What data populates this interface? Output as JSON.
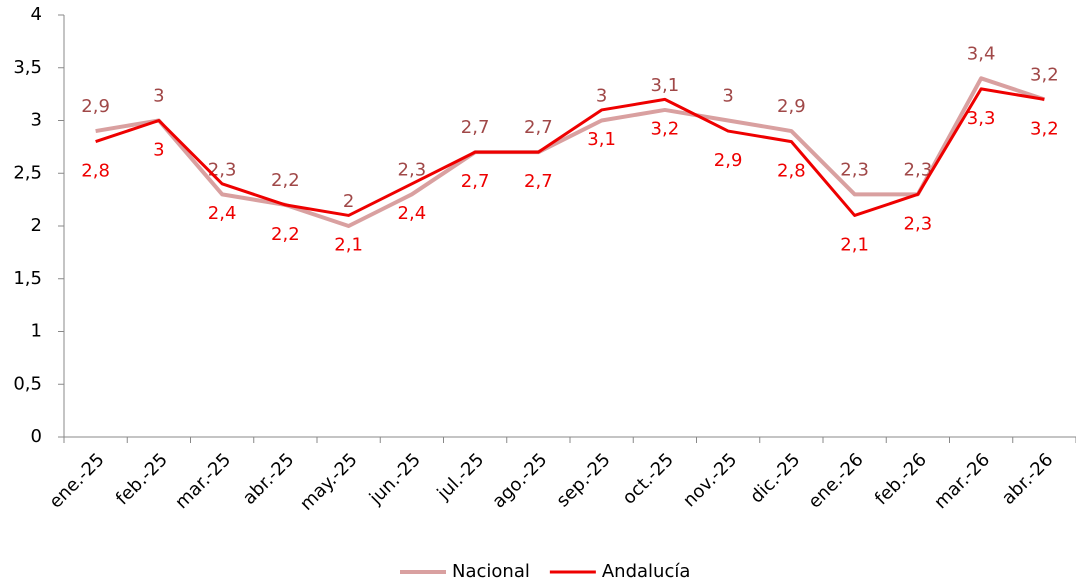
{
  "chart_data": {
    "type": "line",
    "categories": [
      "ene.-25",
      "feb.-25",
      "mar.-25",
      "abr.-25",
      "may.-25",
      "jun.-25",
      "jul.-25",
      "ago.-25",
      "sep.-25",
      "oct.-25",
      "nov.-25",
      "dic.-25",
      "ene.-26",
      "feb.-26",
      "mar.-26",
      "abr.-26"
    ],
    "series": [
      {
        "name": "Nacional",
        "color": "#d9a0a0",
        "label_color": "#a04848",
        "values": [
          2.9,
          3,
          2.3,
          2.2,
          2,
          2.3,
          2.7,
          2.7,
          3,
          3.1,
          3,
          2.9,
          2.3,
          2.3,
          3.4,
          3.2
        ],
        "value_labels": [
          "2,9",
          "3",
          "2,3",
          "2,2",
          "2",
          "2,3",
          "2,7",
          "2,7",
          "3",
          "3,1",
          "3",
          "2,9",
          "2,3",
          "2,3",
          "3,4",
          "3,2"
        ]
      },
      {
        "name": "Andalucía",
        "color": "#ee0000",
        "label_color": "#ee0000",
        "values": [
          2.8,
          3,
          2.4,
          2.2,
          2.1,
          2.4,
          2.7,
          2.7,
          3.1,
          3.2,
          2.9,
          2.8,
          2.1,
          2.3,
          3.3,
          3.2
        ],
        "value_labels": [
          "2,8",
          "3",
          "2,4",
          "2,2",
          "2,1",
          "2,4",
          "2,7",
          "2,7",
          "3,1",
          "3,2",
          "2,9",
          "2,8",
          "2,1",
          "2,3",
          "3,3",
          "3,2"
        ]
      }
    ],
    "ylim": [
      0,
      4
    ],
    "yticks": [
      0,
      {
        "value": 0.5,
        "label": "0,5"
      },
      1,
      {
        "value": 1.5,
        "label": "1,5"
      },
      2,
      {
        "value": 2.5,
        "label": "2,5"
      },
      3,
      {
        "value": 3.5,
        "label": "3,5"
      },
      4
    ],
    "grid": false,
    "legend": "bottom"
  }
}
